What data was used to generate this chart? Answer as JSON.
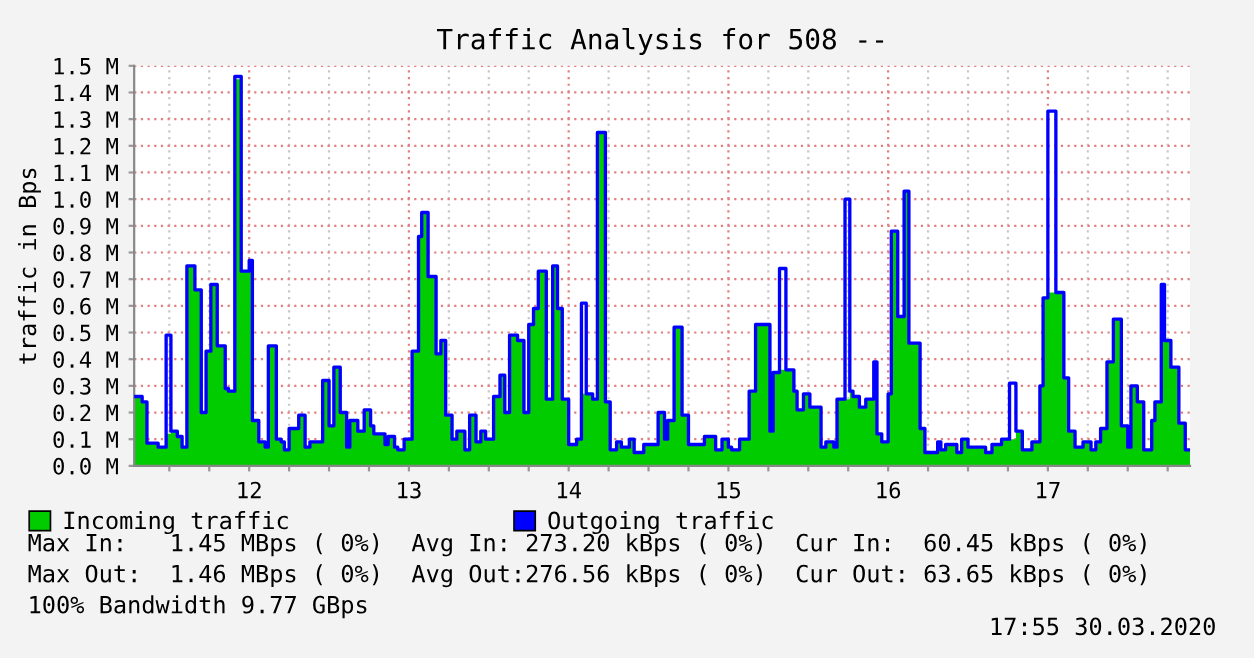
{
  "chart_data": {
    "type": "area",
    "title": "Traffic Analysis for 508 --",
    "ylabel": "traffic in Bps",
    "x": [
      11.28,
      11.33,
      11.36,
      11.43,
      11.48,
      11.51,
      11.55,
      11.58,
      11.61,
      11.66,
      11.7,
      11.73,
      11.76,
      11.8,
      11.85,
      11.87,
      11.91,
      11.95,
      12.0,
      12.02,
      12.06,
      12.1,
      12.12,
      12.17,
      12.2,
      12.22,
      12.25,
      12.31,
      12.35,
      12.38,
      12.46,
      12.5,
      12.53,
      12.57,
      12.61,
      12.63,
      12.68,
      12.72,
      12.76,
      12.78,
      12.85,
      12.87,
      12.91,
      12.93,
      12.97,
      13.02,
      13.06,
      13.08,
      13.12,
      13.17,
      13.2,
      13.23,
      13.27,
      13.3,
      13.35,
      13.38,
      13.42,
      13.45,
      13.48,
      13.53,
      13.57,
      13.6,
      13.63,
      13.68,
      13.72,
      13.75,
      13.78,
      13.81,
      13.86,
      13.9,
      13.93,
      13.96,
      14.0,
      14.05,
      14.08,
      14.11,
      14.15,
      14.18,
      14.23,
      14.26,
      14.3,
      14.33,
      14.38,
      14.41,
      14.47,
      14.56,
      14.6,
      14.62,
      14.66,
      14.71,
      14.75,
      14.85,
      14.92,
      14.96,
      15.0,
      15.02,
      15.07,
      15.13,
      15.17,
      15.26,
      15.28,
      15.32,
      15.36,
      15.41,
      15.43,
      15.47,
      15.51,
      15.58,
      15.61,
      15.66,
      15.68,
      15.73,
      15.76,
      15.78,
      15.82,
      15.86,
      15.91,
      15.93,
      15.96,
      16.0,
      16.02,
      16.06,
      16.1,
      16.13,
      16.2,
      16.23,
      16.31,
      16.33,
      16.36,
      16.43,
      16.46,
      16.5,
      16.61,
      16.65,
      16.71,
      16.76,
      16.8,
      16.84,
      16.9,
      16.95,
      16.97,
      17.0,
      17.05,
      17.1,
      17.13,
      17.17,
      17.22,
      17.27,
      17.3,
      17.33,
      17.37,
      17.41,
      17.46,
      17.5,
      17.52,
      17.56,
      17.6,
      17.65,
      17.67,
      17.71,
      17.73,
      17.77,
      17.82,
      17.86
    ],
    "series": [
      {
        "name": "Incoming traffic",
        "color": "#00cc00",
        "values": [
          0.26,
          0.24,
          0.085,
          0.07,
          0.12,
          0.13,
          0.11,
          0.07,
          0.75,
          0.66,
          0.2,
          0.43,
          0.68,
          0.45,
          0.29,
          0.28,
          1.45,
          0.73,
          0.77,
          0.17,
          0.09,
          0.07,
          0.45,
          0.1,
          0.09,
          0.06,
          0.14,
          0.19,
          0.07,
          0.09,
          0.32,
          0.15,
          0.37,
          0.2,
          0.07,
          0.17,
          0.13,
          0.21,
          0.15,
          0.12,
          0.08,
          0.11,
          0.07,
          0.06,
          0.1,
          0.43,
          0.86,
          0.95,
          0.71,
          0.42,
          0.47,
          0.19,
          0.1,
          0.13,
          0.06,
          0.19,
          0.09,
          0.13,
          0.1,
          0.26,
          0.34,
          0.2,
          0.49,
          0.47,
          0.2,
          0.53,
          0.59,
          0.73,
          0.25,
          0.75,
          0.59,
          0.25,
          0.08,
          0.1,
          0.27,
          0.27,
          0.25,
          1.25,
          0.24,
          0.06,
          0.09,
          0.07,
          0.1,
          0.05,
          0.08,
          0.2,
          0.1,
          0.17,
          0.52,
          0.19,
          0.08,
          0.11,
          0.06,
          0.1,
          0.07,
          0.06,
          0.1,
          0.28,
          0.53,
          0.13,
          0.35,
          0.36,
          0.36,
          0.28,
          0.21,
          0.27,
          0.22,
          0.07,
          0.09,
          0.07,
          0.25,
          0.25,
          0.28,
          0.26,
          0.22,
          0.25,
          0.39,
          0.12,
          0.09,
          0.27,
          0.88,
          0.56,
          1.03,
          0.46,
          0.14,
          0.05,
          0.09,
          0.06,
          0.08,
          0.05,
          0.1,
          0.07,
          0.05,
          0.08,
          0.1,
          0.1,
          0.13,
          0.06,
          0.09,
          0.3,
          0.63,
          0.65,
          0.65,
          0.33,
          0.13,
          0.07,
          0.09,
          0.06,
          0.09,
          0.14,
          0.39,
          0.55,
          0.15,
          0.07,
          0.3,
          0.24,
          0.06,
          0.17,
          0.24,
          0.57,
          0.47,
          0.37,
          0.16,
          0.06
        ]
      },
      {
        "name": "Outgoing traffic",
        "type": "step",
        "color": "#0000ff",
        "values": [
          0.26,
          0.24,
          0.085,
          0.07,
          0.49,
          0.13,
          0.11,
          0.07,
          0.75,
          0.66,
          0.2,
          0.43,
          0.68,
          0.45,
          0.29,
          0.28,
          1.46,
          0.73,
          0.77,
          0.17,
          0.09,
          0.07,
          0.45,
          0.1,
          0.09,
          0.06,
          0.14,
          0.19,
          0.07,
          0.09,
          0.32,
          0.15,
          0.37,
          0.2,
          0.07,
          0.17,
          0.13,
          0.21,
          0.15,
          0.12,
          0.08,
          0.11,
          0.07,
          0.06,
          0.1,
          0.43,
          0.86,
          0.95,
          0.71,
          0.42,
          0.47,
          0.19,
          0.1,
          0.13,
          0.06,
          0.19,
          0.09,
          0.13,
          0.1,
          0.26,
          0.34,
          0.2,
          0.49,
          0.47,
          0.2,
          0.53,
          0.59,
          0.73,
          0.25,
          0.75,
          0.59,
          0.25,
          0.08,
          0.1,
          0.61,
          0.27,
          0.25,
          1.25,
          0.24,
          0.06,
          0.09,
          0.07,
          0.1,
          0.05,
          0.08,
          0.2,
          0.1,
          0.17,
          0.52,
          0.19,
          0.08,
          0.11,
          0.06,
          0.1,
          0.07,
          0.06,
          0.1,
          0.28,
          0.53,
          0.13,
          0.35,
          0.74,
          0.36,
          0.28,
          0.21,
          0.27,
          0.22,
          0.07,
          0.09,
          0.07,
          0.25,
          1.0,
          0.28,
          0.26,
          0.22,
          0.25,
          0.39,
          0.12,
          0.09,
          0.27,
          0.88,
          0.56,
          1.03,
          0.46,
          0.14,
          0.05,
          0.09,
          0.06,
          0.08,
          0.05,
          0.1,
          0.07,
          0.05,
          0.08,
          0.1,
          0.31,
          0.13,
          0.06,
          0.09,
          0.3,
          0.63,
          1.33,
          0.65,
          0.33,
          0.13,
          0.07,
          0.09,
          0.06,
          0.09,
          0.14,
          0.39,
          0.55,
          0.15,
          0.07,
          0.3,
          0.24,
          0.06,
          0.17,
          0.24,
          0.68,
          0.47,
          0.37,
          0.16,
          0.06
        ]
      }
    ],
    "xlim": [
      11.28,
      17.89
    ],
    "xticks": [
      {
        "value": 11.5,
        "label": null
      },
      {
        "value": 11.75,
        "label": null
      },
      12,
      {
        "value": 12.25,
        "label": null
      },
      {
        "value": 12.5,
        "label": null
      },
      {
        "value": 12.75,
        "label": null
      },
      13,
      {
        "value": 13.25,
        "label": null
      },
      {
        "value": 13.5,
        "label": null
      },
      {
        "value": 13.75,
        "label": null
      },
      14,
      {
        "value": 14.25,
        "label": null
      },
      {
        "value": 14.5,
        "label": null
      },
      {
        "value": 14.75,
        "label": null
      },
      15,
      {
        "value": 15.25,
        "label": null
      },
      {
        "value": 15.5,
        "label": null
      },
      {
        "value": 15.75,
        "label": null
      },
      16,
      {
        "value": 16.25,
        "label": null
      },
      {
        "value": 16.5,
        "label": null
      },
      {
        "value": 16.75,
        "label": null
      },
      17,
      {
        "value": 17.25,
        "label": null
      },
      {
        "value": 17.5,
        "label": null
      },
      {
        "value": 17.75,
        "label": null
      }
    ],
    "ylim": [
      0,
      1.5
    ],
    "yticks": [
      {
        "value": 0,
        "label": "0.0 M"
      },
      {
        "value": 0.1,
        "label": "0.1 M"
      },
      {
        "value": 0.2,
        "label": "0.2 M"
      },
      {
        "value": 0.3,
        "label": "0.3 M"
      },
      {
        "value": 0.4,
        "label": "0.4 M"
      },
      {
        "value": 0.5,
        "label": "0.5 M"
      },
      {
        "value": 0.6,
        "label": "0.6 M"
      },
      {
        "value": 0.7,
        "label": "0.7 M"
      },
      {
        "value": 0.8,
        "label": "0.8 M"
      },
      {
        "value": 0.9,
        "label": "0.9 M"
      },
      {
        "value": 1.0,
        "label": "1.0 M"
      },
      {
        "value": 1.1,
        "label": "1.1 M"
      },
      {
        "value": 1.2,
        "label": "1.2 M"
      },
      {
        "value": 1.3,
        "label": "1.3 M"
      },
      {
        "value": 1.4,
        "label": "1.4 M"
      },
      {
        "value": 1.5,
        "label": "1.5 M"
      }
    ],
    "grid": true,
    "legend": "bottom left",
    "annotations": [
      "Max In:   1.45 MBps ( 0%)  Avg In: 273.20 kBps ( 0%)  Cur In:  60.45 kBps ( 0%)",
      "Max Out:  1.46 MBps ( 0%)  Avg Out:276.56 kBps ( 0%)  Cur Out: 63.65 kBps ( 0%)",
      "100% Bandwidth 9.77 GBps",
      "17:55 30.03.2020"
    ]
  }
}
